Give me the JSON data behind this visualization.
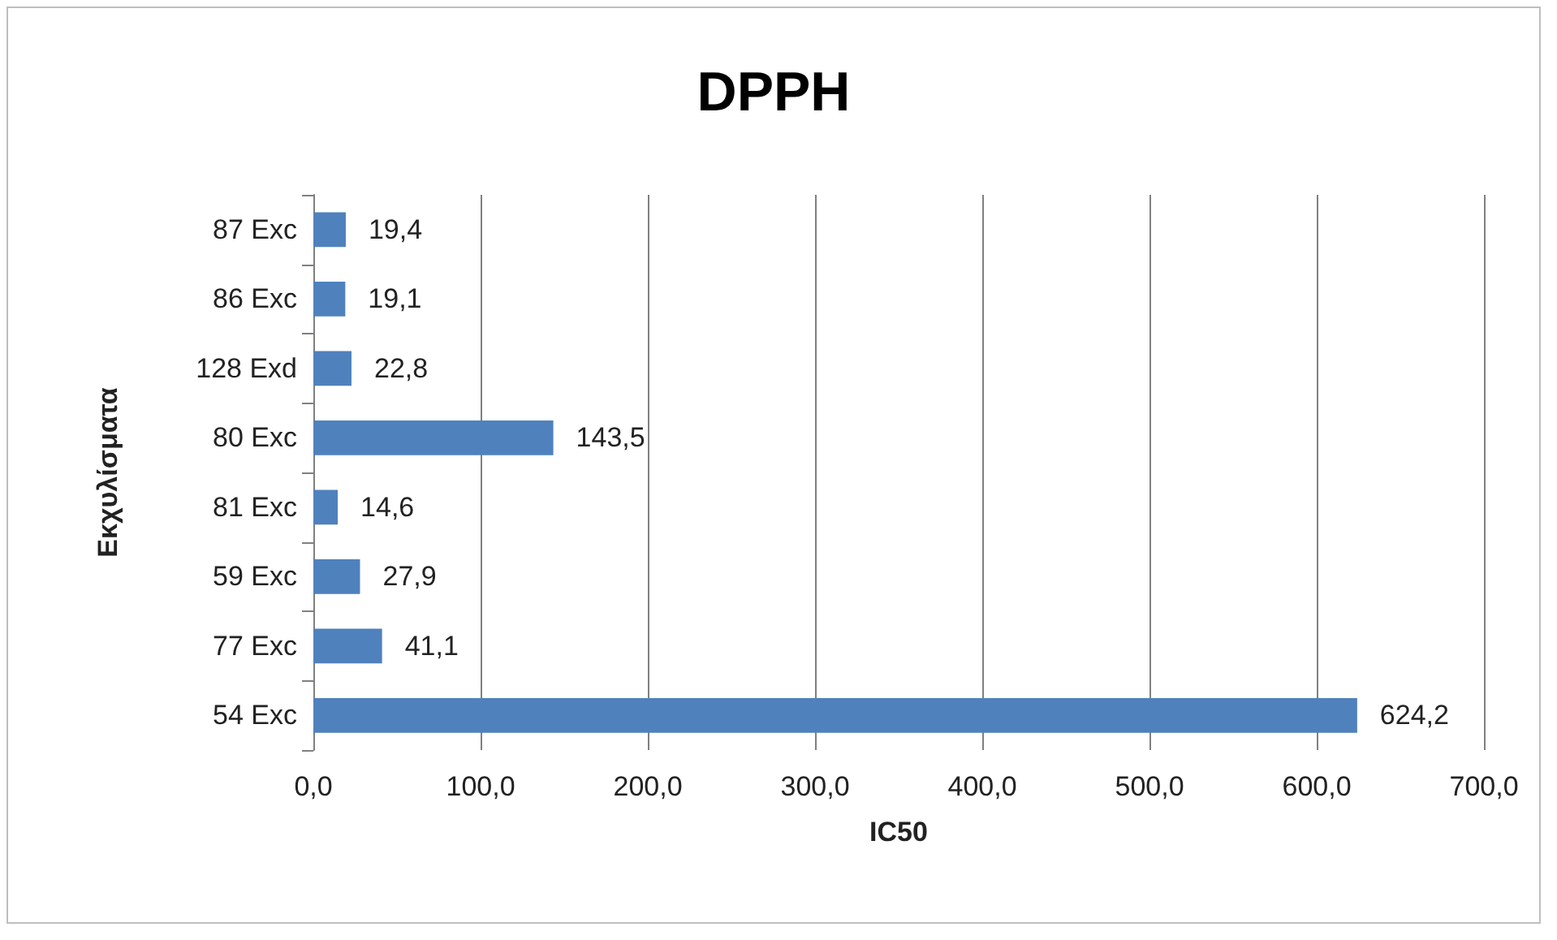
{
  "chart_data": {
    "type": "bar",
    "orientation": "horizontal",
    "title": "DPPH",
    "xlabel": "IC50",
    "ylabel": "Εκχυλίσματα",
    "categories": [
      "87 Exc",
      "86 Exc",
      "128 Exd",
      "80 Exc",
      "81 Exc",
      "59 Exc",
      "77 Exc",
      "54 Exc"
    ],
    "values": [
      19.4,
      19.1,
      22.8,
      143.5,
      14.6,
      27.9,
      41.1,
      624.2
    ],
    "value_labels": [
      "19,4",
      "19,1",
      "22,8",
      "143,5",
      "14,6",
      "27,9",
      "41,1",
      "624,2"
    ],
    "color": "#4f81bd",
    "xlim": [
      0,
      700
    ],
    "xticks": [
      {
        "value": 0,
        "label": "0,0"
      },
      {
        "value": 100,
        "label": "100,0"
      },
      {
        "value": 200,
        "label": "200,0"
      },
      {
        "value": 300,
        "label": "300,0"
      },
      {
        "value": 400,
        "label": "400,0"
      },
      {
        "value": 500,
        "label": "500,0"
      },
      {
        "value": 600,
        "label": "600,0"
      },
      {
        "value": 700,
        "label": "700,0"
      }
    ],
    "grid": "x"
  }
}
